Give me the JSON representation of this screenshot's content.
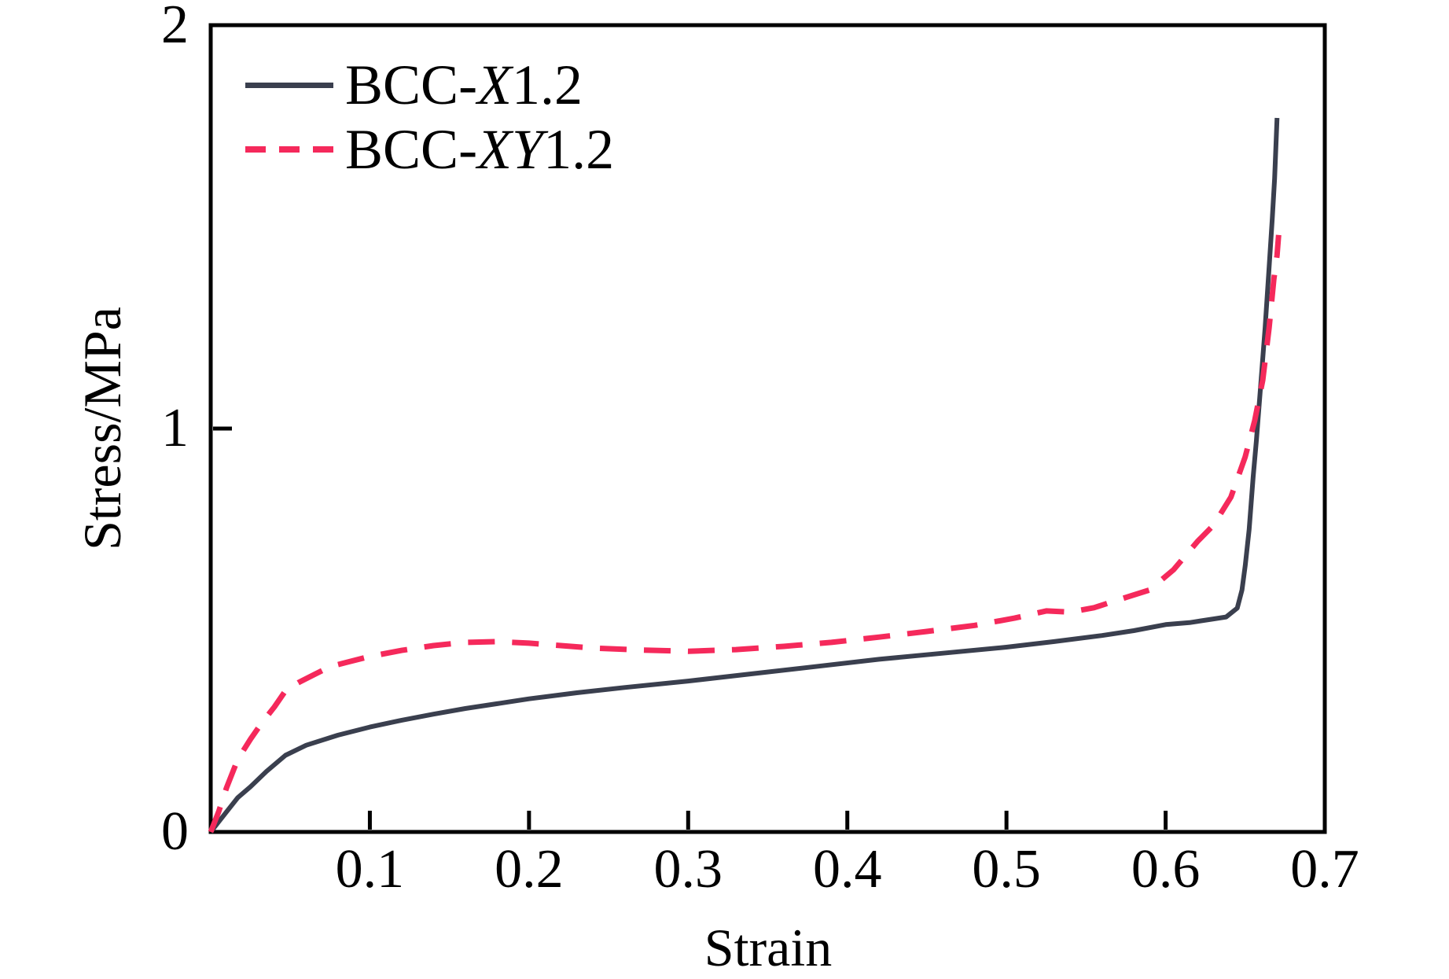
{
  "figure": {
    "background": "#ffffff"
  },
  "legend": {
    "position": "top-left",
    "entries": [
      {
        "prefix": "BCC-",
        "italic": "X",
        "suffix": "1.2",
        "color": "#3a3f4e",
        "style": "solid"
      },
      {
        "prefix": "BCC-",
        "italic": "XY",
        "suffix": "1.2",
        "color": "#f5295b",
        "style": "dashed"
      }
    ]
  },
  "chart_data": {
    "type": "line",
    "title": "",
    "xlabel": "Strain",
    "ylabel": "Stress/MPa",
    "xlim": [
      0,
      0.7
    ],
    "ylim": [
      0,
      2
    ],
    "x_ticks": [
      0.1,
      0.2,
      0.3,
      0.4,
      0.5,
      0.6,
      0.7
    ],
    "y_ticks": [
      0,
      1,
      2
    ],
    "grid": false,
    "legend_position": "top-left",
    "axis_color": "#000000",
    "series": [
      {
        "name": "BCC-X1.2",
        "color": "#3a3f4e",
        "style": "solid",
        "width": 6,
        "points": [
          [
            0,
            0
          ],
          [
            0.005,
            0.025
          ],
          [
            0.01,
            0.05
          ],
          [
            0.017,
            0.085
          ],
          [
            0.025,
            0.112
          ],
          [
            0.035,
            0.15
          ],
          [
            0.047,
            0.19
          ],
          [
            0.06,
            0.215
          ],
          [
            0.08,
            0.24
          ],
          [
            0.1,
            0.26
          ],
          [
            0.12,
            0.277
          ],
          [
            0.14,
            0.292
          ],
          [
            0.16,
            0.306
          ],
          [
            0.18,
            0.318
          ],
          [
            0.2,
            0.33
          ],
          [
            0.23,
            0.345
          ],
          [
            0.26,
            0.358
          ],
          [
            0.3,
            0.374
          ],
          [
            0.34,
            0.392
          ],
          [
            0.38,
            0.41
          ],
          [
            0.42,
            0.428
          ],
          [
            0.46,
            0.443
          ],
          [
            0.5,
            0.458
          ],
          [
            0.53,
            0.472
          ],
          [
            0.56,
            0.487
          ],
          [
            0.58,
            0.499
          ],
          [
            0.6,
            0.514
          ],
          [
            0.615,
            0.519
          ],
          [
            0.63,
            0.528
          ],
          [
            0.638,
            0.533
          ],
          [
            0.645,
            0.555
          ],
          [
            0.648,
            0.6
          ],
          [
            0.65,
            0.66
          ],
          [
            0.6525,
            0.75
          ],
          [
            0.655,
            0.88
          ],
          [
            0.657,
            0.97
          ],
          [
            0.66,
            1.12
          ],
          [
            0.6625,
            1.25
          ],
          [
            0.665,
            1.4
          ],
          [
            0.667,
            1.52
          ],
          [
            0.6685,
            1.62
          ],
          [
            0.67,
            1.77
          ]
        ]
      },
      {
        "name": "BCC-XY1.2",
        "color": "#f5295b",
        "style": "dashed",
        "dash": "34 22",
        "width": 7,
        "points": [
          [
            0,
            0
          ],
          [
            0.005,
            0.05
          ],
          [
            0.01,
            0.11
          ],
          [
            0.017,
            0.18
          ],
          [
            0.025,
            0.23
          ],
          [
            0.032,
            0.27
          ],
          [
            0.04,
            0.31
          ],
          [
            0.047,
            0.35
          ],
          [
            0.055,
            0.37
          ],
          [
            0.065,
            0.39
          ],
          [
            0.075,
            0.41
          ],
          [
            0.085,
            0.42
          ],
          [
            0.1,
            0.435
          ],
          [
            0.12,
            0.45
          ],
          [
            0.14,
            0.462
          ],
          [
            0.16,
            0.47
          ],
          [
            0.18,
            0.472
          ],
          [
            0.2,
            0.468
          ],
          [
            0.22,
            0.462
          ],
          [
            0.24,
            0.456
          ],
          [
            0.27,
            0.451
          ],
          [
            0.3,
            0.448
          ],
          [
            0.33,
            0.452
          ],
          [
            0.36,
            0.46
          ],
          [
            0.39,
            0.47
          ],
          [
            0.42,
            0.483
          ],
          [
            0.45,
            0.497
          ],
          [
            0.48,
            0.512
          ],
          [
            0.505,
            0.53
          ],
          [
            0.525,
            0.548
          ],
          [
            0.54,
            0.545
          ],
          [
            0.555,
            0.556
          ],
          [
            0.57,
            0.575
          ],
          [
            0.59,
            0.6
          ],
          [
            0.605,
            0.65
          ],
          [
            0.62,
            0.72
          ],
          [
            0.63,
            0.76
          ],
          [
            0.641,
            0.83
          ],
          [
            0.65,
            0.93
          ],
          [
            0.656,
            1.02
          ],
          [
            0.661,
            1.12
          ],
          [
            0.665,
            1.25
          ],
          [
            0.668,
            1.37
          ],
          [
            0.67,
            1.43
          ],
          [
            0.671,
            1.48
          ]
        ]
      }
    ]
  }
}
